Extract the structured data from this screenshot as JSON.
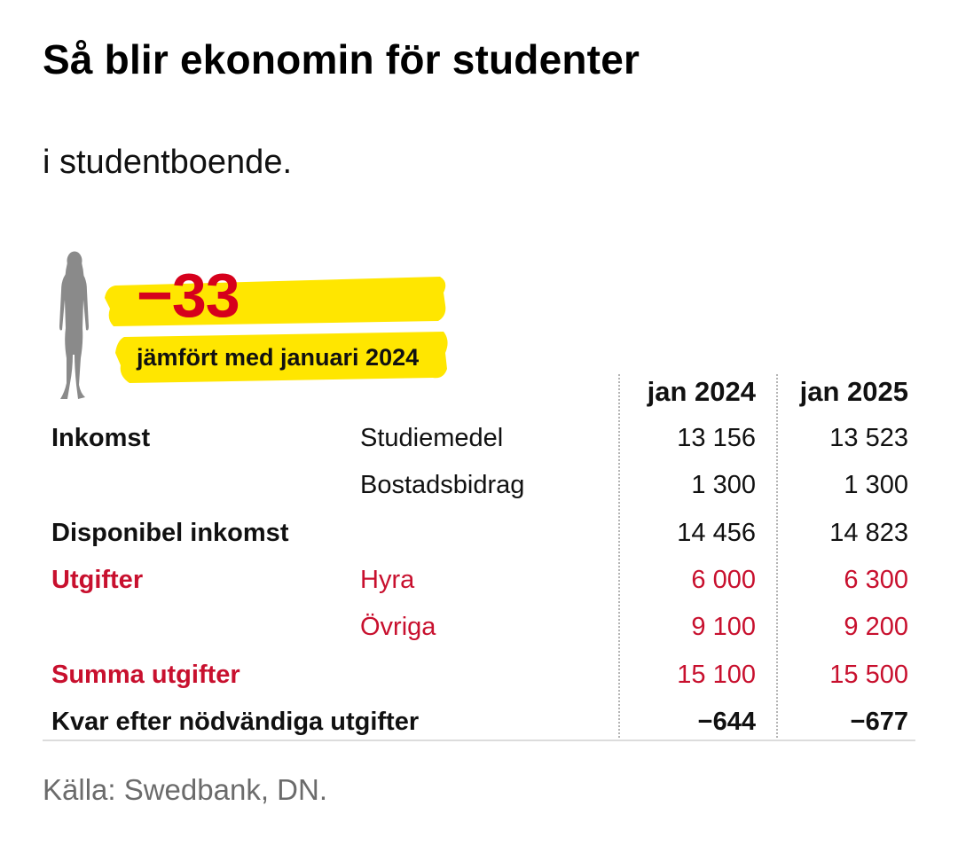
{
  "title": "Så blir ekonomin för studenter",
  "subtitle": "i studentboende.",
  "infographic": {
    "icon": "person-silhouette-icon",
    "highlight_value": "−33",
    "highlight_label": "jämfört med januari 2024",
    "highlight_color": "#ffe600",
    "accent_red": "#c8102e"
  },
  "table": {
    "columns": [
      "jan 2024",
      "jan 2025"
    ],
    "rows": [
      {
        "label": "Inkomst",
        "sub": "Studiemedel",
        "v1": "13 156",
        "v2": "13 523",
        "style": "normal"
      },
      {
        "label": "",
        "sub": "Bostadsbidrag",
        "v1": "1 300",
        "v2": "1 300",
        "style": "normal"
      },
      {
        "label": "Disponibel inkomst",
        "sub": "",
        "v1": "14 456",
        "v2": "14 823",
        "style": "normal"
      },
      {
        "label": "Utgifter",
        "sub": "Hyra",
        "v1": "6 000",
        "v2": "6 300",
        "style": "red"
      },
      {
        "label": "",
        "sub": "Övriga",
        "v1": "9 100",
        "v2": "9 200",
        "style": "red"
      },
      {
        "label": "Summa utgifter",
        "sub": "",
        "v1": "15 100",
        "v2": "15 500",
        "style": "red"
      },
      {
        "label": "Kvar efter nödvändiga utgifter",
        "sub": "",
        "v1": "−644",
        "v2": "−677",
        "style": "bold"
      }
    ]
  },
  "source": "Källa: Swedbank, DN."
}
